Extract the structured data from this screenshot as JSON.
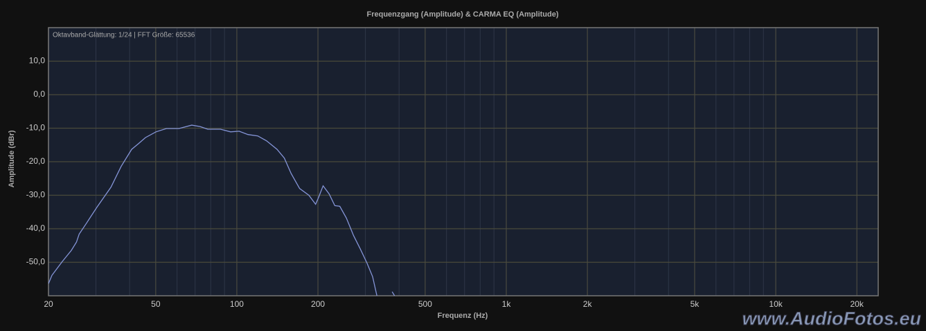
{
  "chart_data": {
    "type": "line",
    "title": "Frequenzgang (Amplitude) & CARMA EQ (Amplitude)",
    "annotation": "Oktavband-Glättung: 1/24 | FFT Größe: 65536",
    "x_label": "Frequenz (Hz)",
    "y_label": "Amplitude (dBr)",
    "watermark": "www.AudioFotos.eu",
    "x_log": true,
    "grid": true,
    "xlim": [
      20,
      24000
    ],
    "ylim": [
      -60,
      20
    ],
    "xticks": [
      20,
      50,
      100,
      200,
      500,
      {
        "value": 1000,
        "label": "1k"
      },
      {
        "value": 2000,
        "label": "2k"
      },
      {
        "value": 5000,
        "label": "5k"
      },
      {
        "value": 10000,
        "label": "10k"
      },
      {
        "value": 20000,
        "label": "20k"
      }
    ],
    "xminor": [
      30,
      40,
      60,
      70,
      80,
      90,
      300,
      400,
      600,
      700,
      800,
      900,
      3000,
      4000,
      6000,
      7000,
      8000,
      9000
    ],
    "yticks": [
      {
        "value": -50,
        "label": "-50,0"
      },
      {
        "value": -40,
        "label": "-40,0"
      },
      {
        "value": -30,
        "label": "-30,0"
      },
      {
        "value": -20,
        "label": "-20,0"
      },
      {
        "value": -10,
        "label": "-10,0"
      },
      {
        "value": 0,
        "label": "0,0"
      },
      {
        "value": 10,
        "label": "10,0"
      }
    ],
    "x": [
      20,
      20.6,
      22.5,
      24.3,
      25.4,
      26,
      27.7,
      30.2,
      34.1,
      37.2,
      40.7,
      43.2,
      45.8,
      50.1,
      54.8,
      61,
      68,
      73,
      78,
      87,
      94.8,
      102,
      110,
      119.6,
      129,
      141,
      150,
      159,
      171,
      185,
      196,
      201,
      209,
      220,
      231,
      241,
      255,
      271,
      287,
      304,
      319,
      331,
      350,
      377,
      385
    ],
    "series": [
      {
        "name": "Frequenzgang",
        "color": "#8595d8",
        "values": [
          -56.4,
          -53.9,
          -49.8,
          -46.5,
          -44,
          -41.6,
          -38.3,
          -33.7,
          -27.6,
          -21.4,
          -16.3,
          -14.6,
          -12.8,
          -11.1,
          -10.1,
          -10.1,
          -9.1,
          -9.5,
          -10.3,
          -10.3,
          -11.1,
          -10.9,
          -11.9,
          -12.3,
          -13.8,
          -16.3,
          -18.9,
          -23.5,
          -28,
          -30,
          -32.7,
          -30.7,
          -27.2,
          -29.6,
          -33.1,
          -33.3,
          -36.8,
          -42,
          -46,
          -50.2,
          -54.3,
          -60,
          null,
          -58.8,
          -60
        ]
      }
    ]
  }
}
